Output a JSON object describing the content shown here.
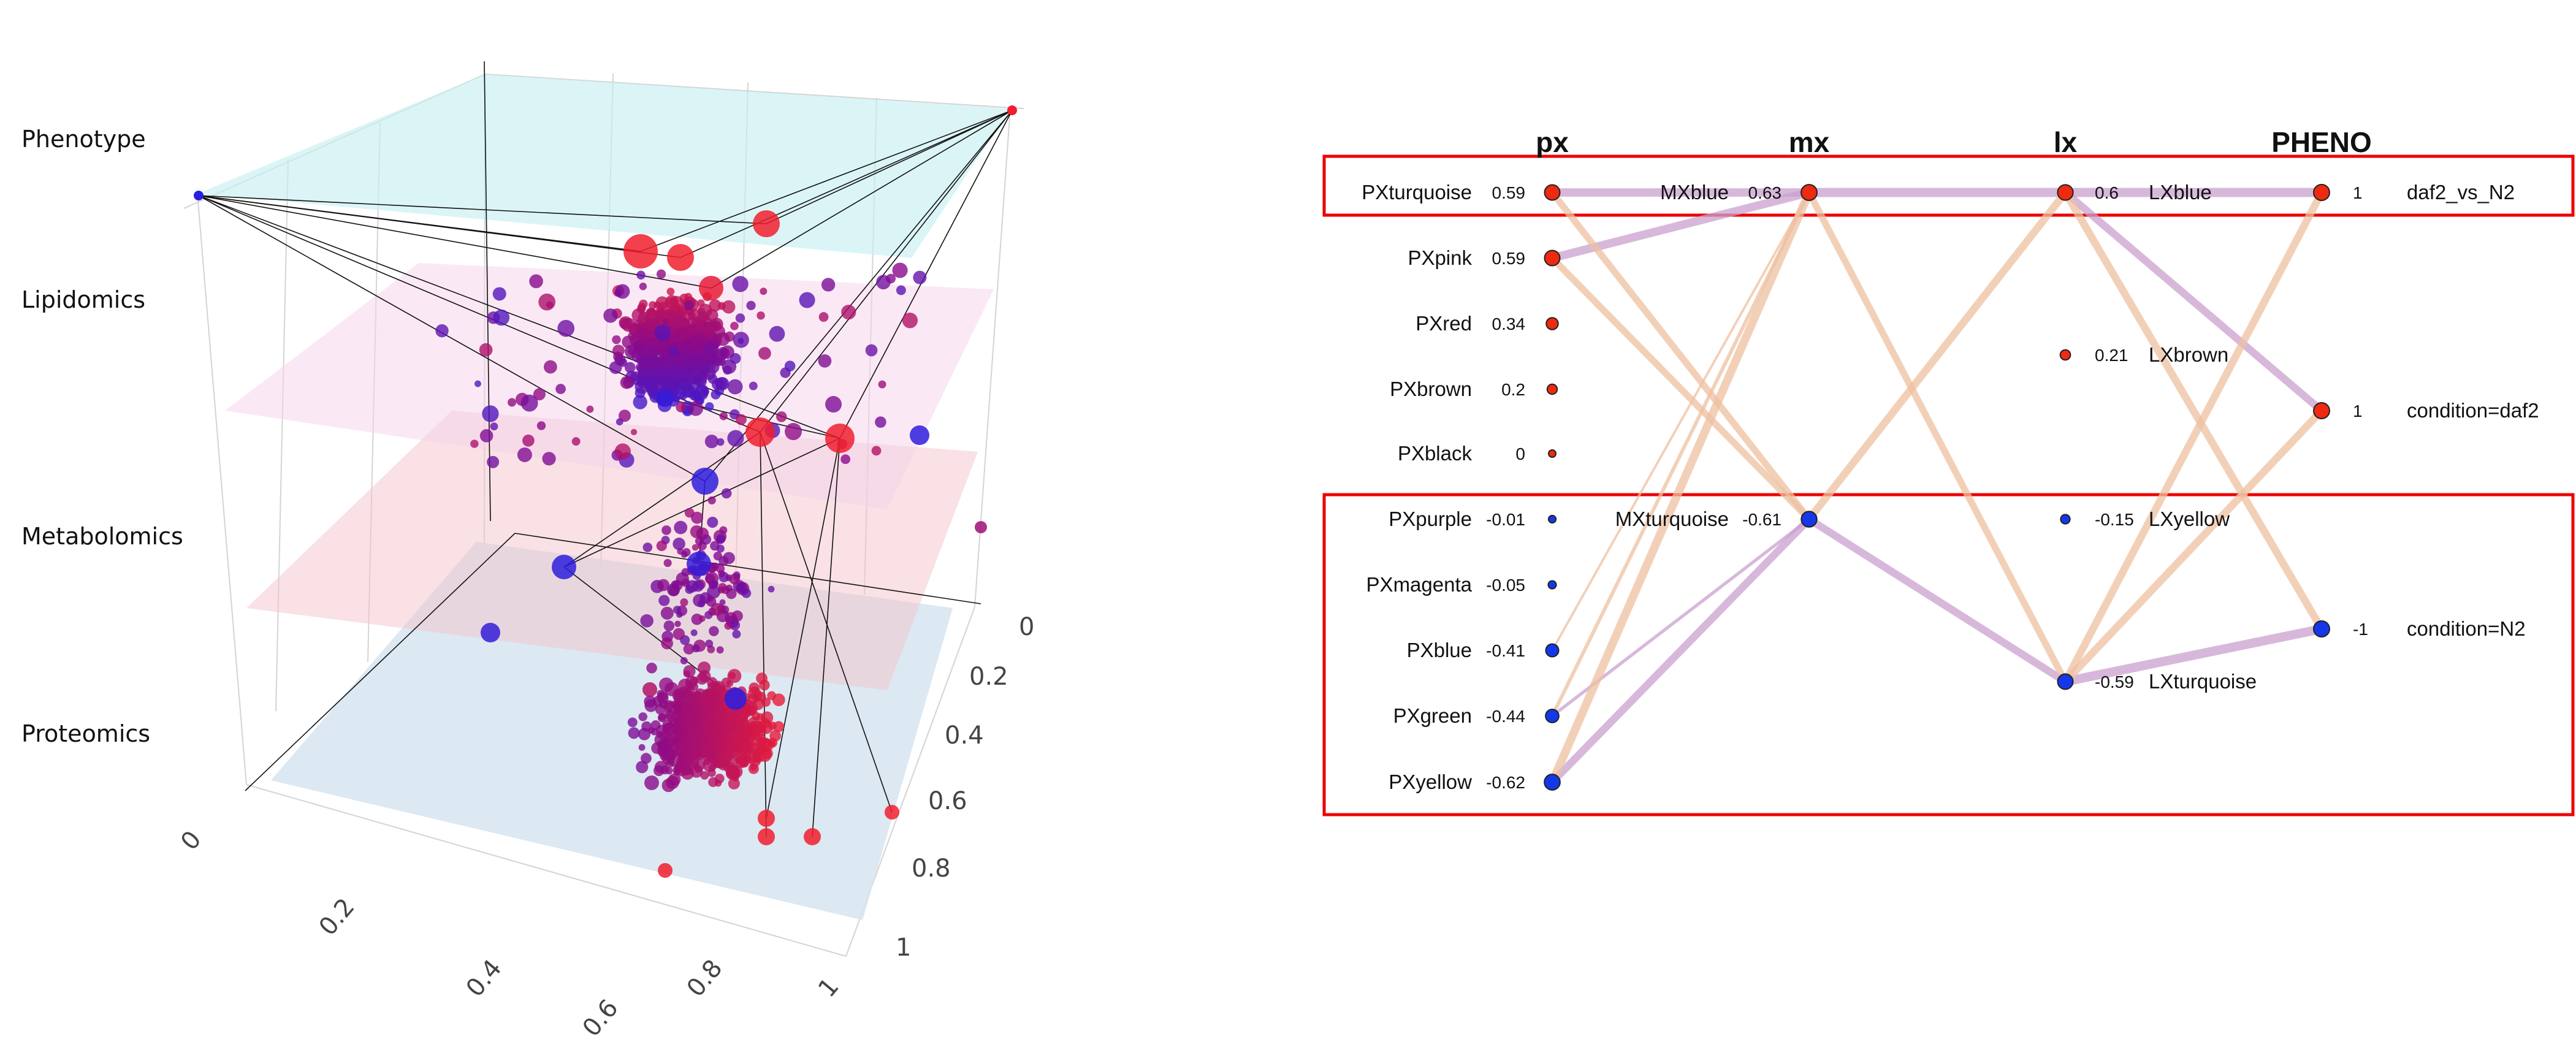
{
  "chart_data": [
    {
      "type": "scatter",
      "subtype": "3d-multilayer-network",
      "layers": [
        "Phenotype",
        "Lipidomics",
        "Metabolomics",
        "Proteomics"
      ],
      "layer_colors": {
        "Phenotype": "#d6f4f6",
        "Lipidomics": "#f8e0f0",
        "Metabolomics": "#f8d4d8",
        "Proteomics": "#d6e4f0"
      },
      "x_ticks": [
        "0",
        "0.2",
        "0.4",
        "0.6",
        "0.8",
        "1"
      ],
      "y_ticks": [
        "0",
        "0.2",
        "0.4",
        "0.6",
        "0.8",
        "1"
      ],
      "xlim": [
        0,
        1
      ],
      "ylim": [
        0,
        1
      ],
      "point_color_scale": [
        "#2a1ee0",
        "#8a0a8a",
        "#f01e2e"
      ],
      "grid": true
    },
    {
      "type": "network",
      "columns": [
        "px",
        "mx",
        "lx",
        "PHENO"
      ],
      "positive_color": "#ee2a10",
      "negative_color": "#1438e8",
      "nodes": [
        {
          "id": "PXturquoise",
          "col": "px",
          "value": "0.59"
        },
        {
          "id": "PXpink",
          "col": "px",
          "value": "0.59"
        },
        {
          "id": "PXred",
          "col": "px",
          "value": "0.34"
        },
        {
          "id": "PXbrown",
          "col": "px",
          "value": "0.2"
        },
        {
          "id": "PXblack",
          "col": "px",
          "value": "0"
        },
        {
          "id": "PXpurple",
          "col": "px",
          "value": "-0.01"
        },
        {
          "id": "PXmagenta",
          "col": "px",
          "value": "-0.05"
        },
        {
          "id": "PXblue",
          "col": "px",
          "value": "-0.41"
        },
        {
          "id": "PXgreen",
          "col": "px",
          "value": "-0.44"
        },
        {
          "id": "PXyellow",
          "col": "px",
          "value": "-0.62"
        },
        {
          "id": "MXblue",
          "col": "mx",
          "value": "0.63"
        },
        {
          "id": "MXturquoise",
          "col": "mx",
          "value": "-0.61"
        },
        {
          "id": "LXblue",
          "col": "lx",
          "value": "0.6"
        },
        {
          "id": "LXbrown",
          "col": "lx",
          "value": "0.21"
        },
        {
          "id": "LXyellow",
          "col": "lx",
          "value": "-0.15"
        },
        {
          "id": "LXturquoise",
          "col": "lx",
          "value": "-0.59"
        },
        {
          "id": "daf2_vs_N2",
          "col": "PHENO",
          "value": "1"
        },
        {
          "id": "condition=daf2",
          "col": "PHENO",
          "value": "1"
        },
        {
          "id": "condition=N2",
          "col": "PHENO",
          "value": "-1"
        }
      ],
      "edges": [
        {
          "from": "PXturquoise",
          "to": "MXblue",
          "sign": "positive",
          "weight": 0.9
        },
        {
          "from": "PXpink",
          "to": "MXblue",
          "sign": "positive",
          "weight": 0.9
        },
        {
          "from": "MXblue",
          "to": "LXblue",
          "sign": "positive",
          "weight": 1.0
        },
        {
          "from": "LXblue",
          "to": "daf2_vs_N2",
          "sign": "positive",
          "weight": 1.0
        },
        {
          "from": "LXblue",
          "to": "condition=daf2",
          "sign": "positive",
          "weight": 0.8
        },
        {
          "from": "MXturquoise",
          "to": "LXturquoise",
          "sign": "positive",
          "weight": 0.8
        },
        {
          "from": "LXturquoise",
          "to": "condition=N2",
          "sign": "positive",
          "weight": 1.0
        },
        {
          "from": "PXyellow",
          "to": "MXturquoise",
          "sign": "positive",
          "weight": 0.8
        },
        {
          "from": "PXgreen",
          "to": "MXturquoise",
          "sign": "positive",
          "weight": 0.25
        },
        {
          "from": "PXturquoise",
          "to": "MXturquoise",
          "sign": "negative",
          "weight": 0.7
        },
        {
          "from": "PXpink",
          "to": "MXturquoise",
          "sign": "negative",
          "weight": 0.7
        },
        {
          "from": "MXblue",
          "to": "LXturquoise",
          "sign": "negative",
          "weight": 0.7
        },
        {
          "from": "LXblue",
          "to": "MXturquoise",
          "sign": "negative",
          "weight": 0.8
        },
        {
          "from": "LXblue",
          "to": "condition=N2",
          "sign": "negative",
          "weight": 0.8
        },
        {
          "from": "LXturquoise",
          "to": "daf2_vs_N2",
          "sign": "negative",
          "weight": 0.8
        },
        {
          "from": "LXturquoise",
          "to": "condition=daf2",
          "sign": "negative",
          "weight": 0.8
        },
        {
          "from": "PXyellow",
          "to": "MXblue",
          "sign": "negative",
          "weight": 0.9
        },
        {
          "from": "PXgreen",
          "to": "MXblue",
          "sign": "negative",
          "weight": 0.3
        },
        {
          "from": "PXblue",
          "to": "MXblue",
          "sign": "negative",
          "weight": 0.15
        }
      ],
      "edge_colors": {
        "positive": "#c9a0cf",
        "negative": "#eec0a0"
      },
      "highlight_groups": [
        [
          "PXturquoise",
          "MXblue",
          "LXblue",
          "daf2_vs_N2"
        ],
        [
          "PXpurple",
          "PXmagenta",
          "PXblue",
          "PXgreen",
          "PXyellow",
          "MXturquoise",
          "LXyellow",
          "LXturquoise",
          "condition=N2"
        ]
      ],
      "highlight_color": "#ee0000"
    }
  ]
}
